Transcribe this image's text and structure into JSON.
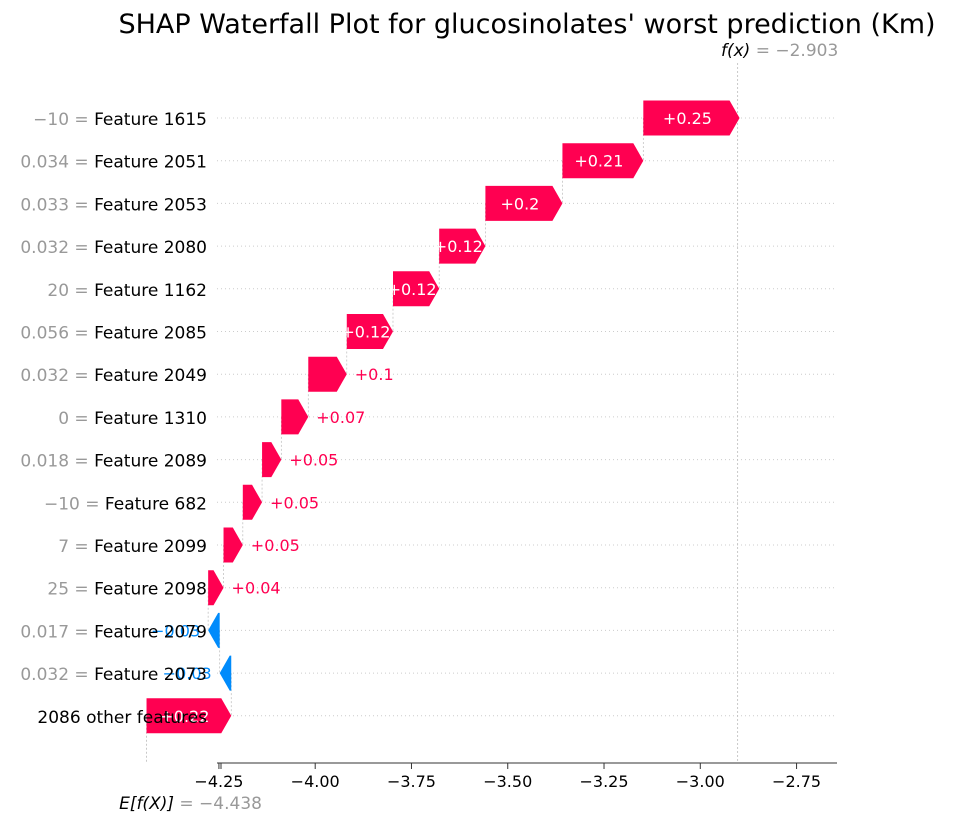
{
  "chart_data": {
    "type": "waterfall",
    "title": "SHAP Waterfall Plot for glucosinolates' worst prediction (Km)",
    "base_value": -4.438,
    "final_value": -2.903,
    "base_label_prefix": "E[f(X)]",
    "base_label_value": "= −4.438",
    "final_label_prefix": "f(x)",
    "final_label_value": "= −2.903",
    "xlim": [
      -4.255,
      -2.645
    ],
    "xticks": [
      -4.25,
      -4.0,
      -3.75,
      -3.5,
      -3.25,
      -3.0,
      -2.75
    ],
    "xtick_labels": [
      "−4.25",
      "−4.00",
      "−3.75",
      "−3.50",
      "−3.25",
      "−3.00",
      "−2.75"
    ],
    "positive_color": "#ff0051",
    "negative_color": "#008bfb",
    "features": [
      {
        "value": "−10",
        "name": "Feature 1615",
        "shap": 0.25,
        "label": "+0.25"
      },
      {
        "value": "0.034",
        "name": "Feature 2051",
        "shap": 0.21,
        "label": "+0.21"
      },
      {
        "value": "0.033",
        "name": "Feature 2053",
        "shap": 0.2,
        "label": "+0.2"
      },
      {
        "value": "0.032",
        "name": "Feature 2080",
        "shap": 0.12,
        "label": "+0.12"
      },
      {
        "value": "20",
        "name": "Feature 1162",
        "shap": 0.12,
        "label": "+0.12"
      },
      {
        "value": "0.056",
        "name": "Feature 2085",
        "shap": 0.12,
        "label": "+0.12"
      },
      {
        "value": "0.032",
        "name": "Feature 2049",
        "shap": 0.1,
        "label": "+0.1"
      },
      {
        "value": "0",
        "name": "Feature 1310",
        "shap": 0.07,
        "label": "+0.07"
      },
      {
        "value": "0.018",
        "name": "Feature 2089",
        "shap": 0.05,
        "label": "+0.05"
      },
      {
        "value": "−10",
        "name": "Feature 682",
        "shap": 0.05,
        "label": "+0.05"
      },
      {
        "value": "7",
        "name": "Feature 2099",
        "shap": 0.05,
        "label": "+0.05"
      },
      {
        "value": "25",
        "name": "Feature 2098",
        "shap": 0.04,
        "label": "+0.04"
      },
      {
        "value": "0.017",
        "name": "Feature 2079",
        "shap": -0.03,
        "label": "−0.03"
      },
      {
        "value": "0.032",
        "name": "Feature 2073",
        "shap": -0.03,
        "label": "−0.03"
      },
      {
        "value": "",
        "name": "2086 other features",
        "shap": 0.22,
        "label": "+0.22"
      }
    ]
  }
}
